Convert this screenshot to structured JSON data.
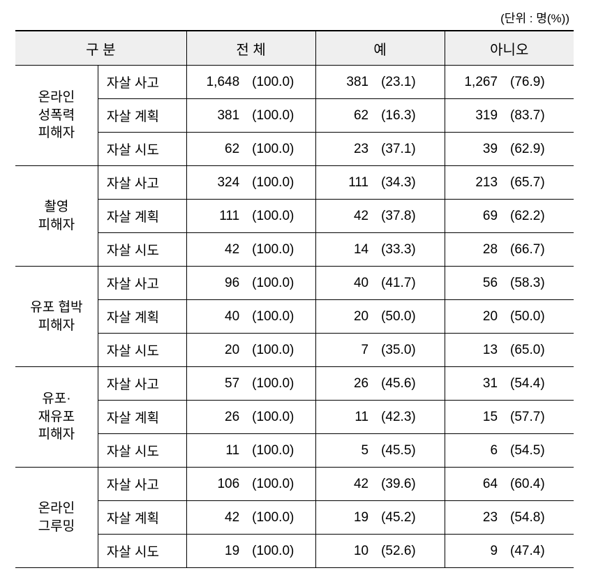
{
  "unit_label": "(단위 : 명(%))",
  "headers": {
    "category": "구 분",
    "total": "전 체",
    "yes": "예",
    "no": "아니오"
  },
  "sub_labels": [
    "자살 사고",
    "자살 계획",
    "자살 시도"
  ],
  "groups": [
    {
      "name_lines": [
        "온라인",
        "성폭력",
        "피해자"
      ],
      "rows": [
        {
          "total_n": "1,648",
          "total_p": "(100.0)",
          "yes_n": "381",
          "yes_p": "(23.1)",
          "no_n": "1,267",
          "no_p": "(76.9)"
        },
        {
          "total_n": "381",
          "total_p": "(100.0)",
          "yes_n": "62",
          "yes_p": "(16.3)",
          "no_n": "319",
          "no_p": "(83.7)"
        },
        {
          "total_n": "62",
          "total_p": "(100.0)",
          "yes_n": "23",
          "yes_p": "(37.1)",
          "no_n": "39",
          "no_p": "(62.9)"
        }
      ]
    },
    {
      "name_lines": [
        "촬영",
        "피해자"
      ],
      "rows": [
        {
          "total_n": "324",
          "total_p": "(100.0)",
          "yes_n": "111",
          "yes_p": "(34.3)",
          "no_n": "213",
          "no_p": "(65.7)"
        },
        {
          "total_n": "111",
          "total_p": "(100.0)",
          "yes_n": "42",
          "yes_p": "(37.8)",
          "no_n": "69",
          "no_p": "(62.2)"
        },
        {
          "total_n": "42",
          "total_p": "(100.0)",
          "yes_n": "14",
          "yes_p": "(33.3)",
          "no_n": "28",
          "no_p": "(66.7)"
        }
      ]
    },
    {
      "name_lines": [
        "유포 협박",
        "피해자"
      ],
      "rows": [
        {
          "total_n": "96",
          "total_p": "(100.0)",
          "yes_n": "40",
          "yes_p": "(41.7)",
          "no_n": "56",
          "no_p": "(58.3)"
        },
        {
          "total_n": "40",
          "total_p": "(100.0)",
          "yes_n": "20",
          "yes_p": "(50.0)",
          "no_n": "20",
          "no_p": "(50.0)"
        },
        {
          "total_n": "20",
          "total_p": "(100.0)",
          "yes_n": "7",
          "yes_p": "(35.0)",
          "no_n": "13",
          "no_p": "(65.0)"
        }
      ]
    },
    {
      "name_lines": [
        "유포·",
        "재유포",
        "피해자"
      ],
      "rows": [
        {
          "total_n": "57",
          "total_p": "(100.0)",
          "yes_n": "26",
          "yes_p": "(45.6)",
          "no_n": "31",
          "no_p": "(54.4)"
        },
        {
          "total_n": "26",
          "total_p": "(100.0)",
          "yes_n": "11",
          "yes_p": "(42.3)",
          "no_n": "15",
          "no_p": "(57.7)"
        },
        {
          "total_n": "11",
          "total_p": "(100.0)",
          "yes_n": "5",
          "yes_p": "(45.5)",
          "no_n": "6",
          "no_p": "(54.5)"
        }
      ]
    },
    {
      "name_lines": [
        "온라인",
        "그루밍"
      ],
      "rows": [
        {
          "total_n": "106",
          "total_p": "(100.0)",
          "yes_n": "42",
          "yes_p": "(39.6)",
          "no_n": "64",
          "no_p": "(60.4)"
        },
        {
          "total_n": "42",
          "total_p": "(100.0)",
          "yes_n": "19",
          "yes_p": "(45.2)",
          "no_n": "23",
          "no_p": "(54.8)"
        },
        {
          "total_n": "19",
          "total_p": "(100.0)",
          "yes_n": "10",
          "yes_p": "(52.6)",
          "no_n": "9",
          "no_p": "(47.4)"
        }
      ]
    }
  ],
  "style": {
    "background_color": "#ffffff",
    "header_bg": "#efefef",
    "border_color": "#000000",
    "font_family": "Malgun Gothic",
    "header_font_size_pt": 15,
    "cell_font_size_pt": 14
  }
}
